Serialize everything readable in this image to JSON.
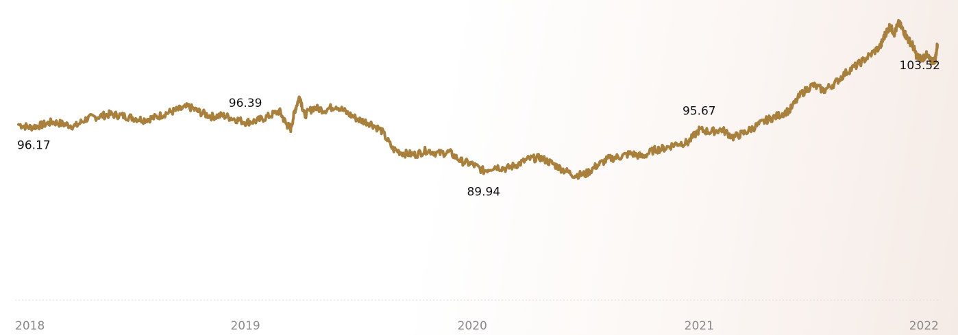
{
  "chart_data": {
    "type": "line",
    "title": "",
    "xlabel": "",
    "ylabel": "",
    "x_ticks": [
      "2018",
      "2019",
      "2020",
      "2021",
      "2022"
    ],
    "xlim": [
      2018.0,
      2022.05
    ],
    "ylim": [
      80.0,
      107.0
    ],
    "grid": false,
    "series": [
      {
        "color": "#a8803c",
        "points": [
          [
            2018.0,
            96.17
          ],
          [
            2018.05,
            95.9
          ],
          [
            2018.1,
            96.1
          ],
          [
            2018.15,
            96.4
          ],
          [
            2018.2,
            96.2
          ],
          [
            2018.25,
            96.0
          ],
          [
            2018.3,
            96.7
          ],
          [
            2018.35,
            96.9
          ],
          [
            2018.4,
            97.1
          ],
          [
            2018.45,
            97.0
          ],
          [
            2018.5,
            96.8
          ],
          [
            2018.55,
            96.6
          ],
          [
            2018.6,
            96.8
          ],
          [
            2018.65,
            97.2
          ],
          [
            2018.7,
            97.5
          ],
          [
            2018.75,
            97.8
          ],
          [
            2018.8,
            97.3
          ],
          [
            2018.85,
            96.9
          ],
          [
            2018.9,
            97.0
          ],
          [
            2018.95,
            96.7
          ],
          [
            2019.0,
            96.39
          ],
          [
            2019.05,
            96.5
          ],
          [
            2019.1,
            96.9
          ],
          [
            2019.15,
            97.4
          ],
          [
            2019.18,
            96.2
          ],
          [
            2019.2,
            95.8
          ],
          [
            2019.22,
            97.6
          ],
          [
            2019.24,
            98.8
          ],
          [
            2019.26,
            97.0
          ],
          [
            2019.3,
            97.7
          ],
          [
            2019.35,
            97.5
          ],
          [
            2019.4,
            97.9
          ],
          [
            2019.45,
            97.2
          ],
          [
            2019.5,
            96.6
          ],
          [
            2019.55,
            96.3
          ],
          [
            2019.6,
            95.6
          ],
          [
            2019.65,
            93.9
          ],
          [
            2019.7,
            93.5
          ],
          [
            2019.75,
            93.4
          ],
          [
            2019.8,
            93.8
          ],
          [
            2019.85,
            93.5
          ],
          [
            2019.9,
            93.6
          ],
          [
            2019.95,
            92.8
          ],
          [
            2020.0,
            92.5
          ],
          [
            2020.05,
            91.9
          ],
          [
            2020.1,
            92.3
          ],
          [
            2020.15,
            92.1
          ],
          [
            2020.2,
            92.5
          ],
          [
            2020.25,
            93.0
          ],
          [
            2020.3,
            93.1
          ],
          [
            2020.35,
            92.6
          ],
          [
            2020.4,
            92.0
          ],
          [
            2020.45,
            91.5
          ],
          [
            2020.5,
            91.6
          ],
          [
            2020.55,
            92.4
          ],
          [
            2020.6,
            93.0
          ],
          [
            2020.65,
            93.2
          ],
          [
            2020.7,
            93.5
          ],
          [
            2020.75,
            93.2
          ],
          [
            2020.8,
            93.8
          ],
          [
            2020.85,
            94.0
          ],
          [
            2020.9,
            94.4
          ],
          [
            2020.95,
            94.5
          ],
          [
            2021.0,
            95.67
          ],
          [
            2021.05,
            95.5
          ],
          [
            2021.1,
            95.7
          ],
          [
            2021.15,
            95.0
          ],
          [
            2021.2,
            95.4
          ],
          [
            2021.25,
            96.0
          ],
          [
            2021.3,
            96.6
          ],
          [
            2021.35,
            97.0
          ],
          [
            2021.4,
            97.5
          ],
          [
            2021.45,
            99.0
          ],
          [
            2021.5,
            99.8
          ],
          [
            2021.55,
            99.3
          ],
          [
            2021.6,
            100.0
          ],
          [
            2021.65,
            101.0
          ],
          [
            2021.7,
            101.7
          ],
          [
            2021.75,
            102.5
          ],
          [
            2021.8,
            103.4
          ],
          [
            2021.82,
            104.5
          ],
          [
            2021.84,
            105.2
          ],
          [
            2021.86,
            104.6
          ],
          [
            2021.88,
            105.5
          ],
          [
            2021.9,
            104.8
          ],
          [
            2021.92,
            104.0
          ],
          [
            2021.94,
            103.5
          ],
          [
            2021.96,
            102.4
          ],
          [
            2021.98,
            102.2
          ],
          [
            2022.0,
            102.6
          ],
          [
            2022.02,
            102.0
          ],
          [
            2022.04,
            102.1
          ],
          [
            2022.05,
            103.52
          ]
        ]
      }
    ],
    "annotations": [
      {
        "text": "96.17",
        "x": 2018.0,
        "y": 96.17,
        "position": "below"
      },
      {
        "text": "96.39",
        "x": 2019.0,
        "y": 96.39,
        "position": "above"
      },
      {
        "text": "89.94",
        "x": 2020.05,
        "y": 91.9,
        "position": "below"
      },
      {
        "text": "95.67",
        "x": 2021.0,
        "y": 95.67,
        "position": "above"
      },
      {
        "text": "103.52",
        "x": 2022.05,
        "y": 103.52,
        "position": "below"
      }
    ]
  }
}
